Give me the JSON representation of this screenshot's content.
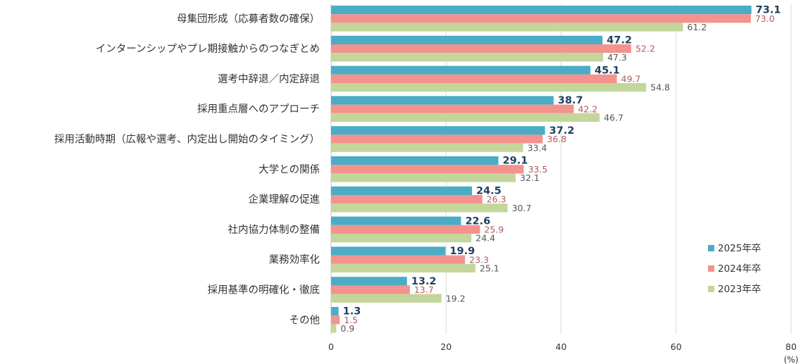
{
  "chart_data": {
    "type": "bar",
    "orientation": "horizontal",
    "categories": [
      "母集団形成（応募者数の確保）",
      "インターンシップやプレ期接触からのつなぎとめ",
      "選考中辞退／内定辞退",
      "採用重点層へのアプローチ",
      "採用活動時期（広報や選考、内定出し開始のタイミング）",
      "大学との関係",
      "企業理解の促進",
      "社内協力体制の整備",
      "業務効率化",
      "採用基準の明確化・徹底",
      "その他"
    ],
    "series": [
      {
        "name": "2025年卒",
        "color": "#4bacc6",
        "values": [
          73.1,
          47.2,
          45.1,
          38.7,
          37.2,
          29.1,
          24.5,
          22.6,
          19.9,
          13.2,
          1.3
        ]
      },
      {
        "name": "2024年卒",
        "color": "#f4928e",
        "values": [
          73.0,
          52.2,
          49.7,
          42.2,
          36.8,
          33.5,
          26.3,
          25.9,
          23.3,
          13.7,
          1.5
        ]
      },
      {
        "name": "2023年卒",
        "color": "#c3d69b",
        "values": [
          61.2,
          47.3,
          54.8,
          46.7,
          33.4,
          32.1,
          30.7,
          24.4,
          25.1,
          19.2,
          0.9
        ]
      }
    ],
    "xlim": [
      0,
      80
    ],
    "xticks": [
      "0",
      "20",
      "40",
      "60",
      "80"
    ],
    "xticks_values": [
      0,
      20,
      40,
      60,
      80
    ],
    "unit": "(%)",
    "legend_position": "bottom-right"
  }
}
